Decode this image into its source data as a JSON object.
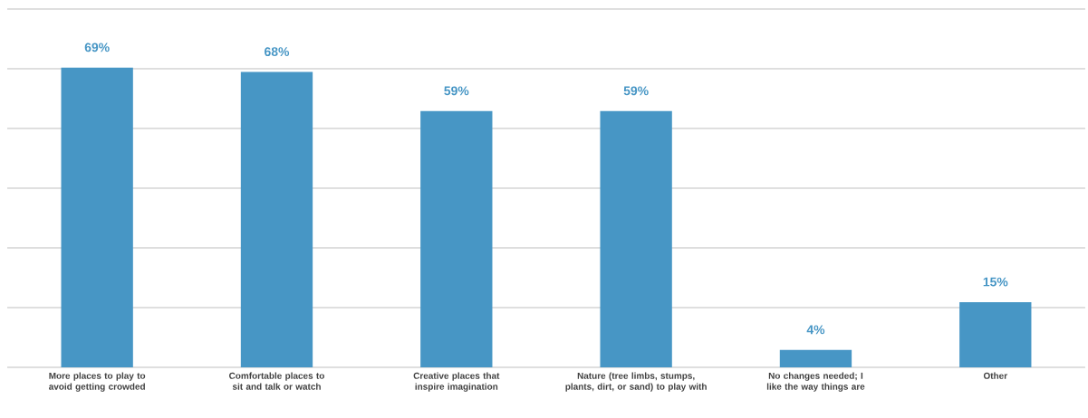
{
  "chart_data": {
    "type": "bar",
    "categories": [
      "More places to play to avoid getting crowded",
      "Comfortable places to sit and talk or watch",
      "Creative places that inspire imagination",
      "Nature (tree limbs, stumps, plants, dirt, or sand) to play with",
      "No changes needed; I like the way things are",
      "Other"
    ],
    "values": [
      69,
      68,
      59,
      59,
      4,
      15
    ],
    "value_labels": [
      "69%",
      "68%",
      "59%",
      "59%",
      "4%",
      "15%"
    ],
    "color": "#4796c5",
    "ylim": [
      0,
      82.5
    ],
    "yticks": [
      {
        "value": 0,
        "label": null
      },
      {
        "value": 13.75,
        "label": null
      },
      {
        "value": 27.5,
        "label": null
      },
      {
        "value": 41.25,
        "label": null
      },
      {
        "value": 55,
        "label": null
      },
      {
        "value": 68.75,
        "label": null
      },
      {
        "value": 82.5,
        "label": null
      }
    ],
    "grid": "y",
    "tick_labels": "x"
  }
}
